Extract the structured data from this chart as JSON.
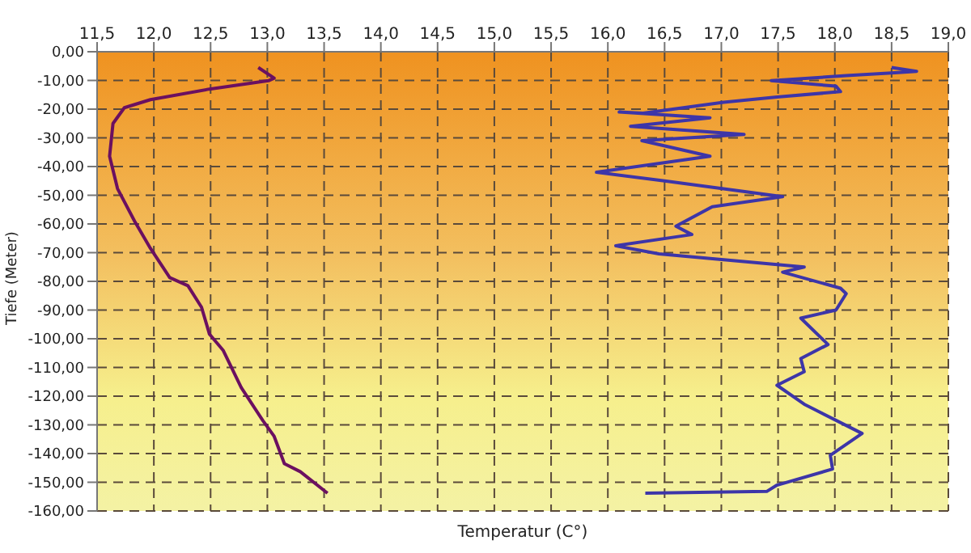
{
  "chart_data": {
    "type": "line",
    "xlabel": "Temperatur (C°)",
    "ylabel": "Tiefe (Meter)",
    "xlim": [
      11.5,
      19.0
    ],
    "xticks": [
      {
        "value": 11.5,
        "label": "11,5"
      },
      {
        "value": 12,
        "label": "12,0"
      },
      {
        "value": 12.5,
        "label": "12,5"
      },
      {
        "value": 13,
        "label": "13,0"
      },
      {
        "value": 13.5,
        "label": "13,5"
      },
      {
        "value": 14,
        "label": "14,0"
      },
      {
        "value": 14.5,
        "label": "14,5"
      },
      {
        "value": 15,
        "label": "15,0"
      },
      {
        "value": 15.5,
        "label": "15,5"
      },
      {
        "value": 16,
        "label": "16,0"
      },
      {
        "value": 16.5,
        "label": "16,5"
      },
      {
        "value": 17,
        "label": "17,0"
      },
      {
        "value": 17.5,
        "label": "17,5"
      },
      {
        "value": 18,
        "label": "18,0"
      },
      {
        "value": 18.5,
        "label": "18,5"
      },
      {
        "value": 19,
        "label": "19,0"
      }
    ],
    "ylim": [
      -160,
      0
    ],
    "yticks": [
      {
        "value": 0,
        "label": "0,00"
      },
      {
        "value": -10,
        "label": "-10,00"
      },
      {
        "value": -20,
        "label": "-20,00"
      },
      {
        "value": -30,
        "label": "-30,00"
      },
      {
        "value": -40,
        "label": "-40,00"
      },
      {
        "value": -50,
        "label": "-50,00"
      },
      {
        "value": -60,
        "label": "-60,00"
      },
      {
        "value": -70,
        "label": "-70,00"
      },
      {
        "value": -80,
        "label": "-80,00"
      },
      {
        "value": -90,
        "label": "-90,00"
      },
      {
        "value": -100,
        "label": "-100,00"
      },
      {
        "value": -110,
        "label": "-110,00"
      },
      {
        "value": -120,
        "label": "-120,00"
      },
      {
        "value": -130,
        "label": "-130,00"
      },
      {
        "value": -140,
        "label": "-140,00"
      },
      {
        "value": -150,
        "label": "-150,00"
      },
      {
        "value": -160,
        "label": "-160,00"
      }
    ],
    "grid": true,
    "legend": false,
    "marker": "none",
    "line_style": "solid",
    "series": [
      {
        "color": "#6b1060",
        "x": [
          12.92,
          13.06,
          13.01,
          12.49,
          11.97,
          11.74,
          11.64,
          11.61,
          11.68,
          11.83,
          11.97,
          12.14,
          12.3,
          12.42,
          12.49,
          12.61,
          12.77,
          12.96,
          13.06,
          13.15,
          13.29,
          13.53
        ],
        "values": [
          -5.5,
          -9.2,
          -10.1,
          -13,
          -16.7,
          -19.5,
          -25,
          -36.4,
          -47.7,
          -59,
          -68.5,
          -78.7,
          -81.5,
          -89,
          -98.4,
          -104,
          -117,
          -128.5,
          -134,
          -143.5,
          -146.3,
          -153.8
        ]
      },
      {
        "color": "#3d35a8",
        "x": [
          18.5,
          18.72,
          18.53,
          18.1,
          17.44,
          18.01,
          18.05,
          17.49,
          17.02,
          16.31,
          16.1,
          16.9,
          16.2,
          17.2,
          16.3,
          16.9,
          15.9,
          16.5,
          17.54,
          16.92,
          16.6,
          16.74,
          16.07,
          16.45,
          17.73,
          17.54,
          18.05,
          18.1,
          18.01,
          17.7,
          17.94,
          17.7,
          17.73,
          17.49,
          17.73,
          18.24,
          17.96,
          17.98,
          17.49,
          17.4,
          16.33
        ],
        "values": [
          -5.5,
          -6.8,
          -7.3,
          -8.3,
          -10.1,
          -12,
          -13.9,
          -15.8,
          -17.6,
          -21.4,
          -21,
          -23,
          -26,
          -28.8,
          -31,
          -36.4,
          -42,
          -45,
          -50.5,
          -54,
          -60.8,
          -63.7,
          -67.6,
          -70.4,
          -75,
          -76.8,
          -82.4,
          -84.3,
          -90,
          -92.8,
          -102,
          -106.9,
          -111.5,
          -116.2,
          -122.8,
          -133,
          -140.6,
          -145.4,
          -151,
          -153.2,
          -153.8
        ]
      }
    ]
  }
}
